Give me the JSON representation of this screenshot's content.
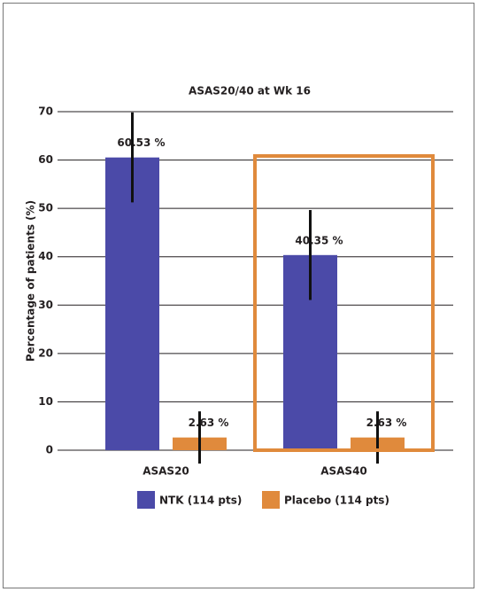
{
  "chart_data": {
    "type": "bar",
    "title": "ASAS20/40 at Wk 16",
    "y_label": "Percentage of patients (%)",
    "categories": [
      "ASAS20",
      "ASAS40"
    ],
    "series": [
      {
        "name": "NTK (114 pts)",
        "color": "#4b4aa8",
        "values": [
          60.53,
          40.35
        ],
        "value_labels": [
          "60.53 %",
          "40.35 %"
        ],
        "errors": [
          9.3,
          9.3
        ]
      },
      {
        "name": "Placebo (114 pts)",
        "color": "#e08a3c",
        "values": [
          2.63,
          2.63
        ],
        "value_labels": [
          "2.63 %",
          "2.63 %"
        ],
        "errors": [
          5.4,
          5.4
        ]
      }
    ],
    "ylim": [
      0,
      70
    ],
    "yticks": [
      0,
      10,
      20,
      30,
      40,
      50,
      60,
      70
    ],
    "grid": true
  }
}
